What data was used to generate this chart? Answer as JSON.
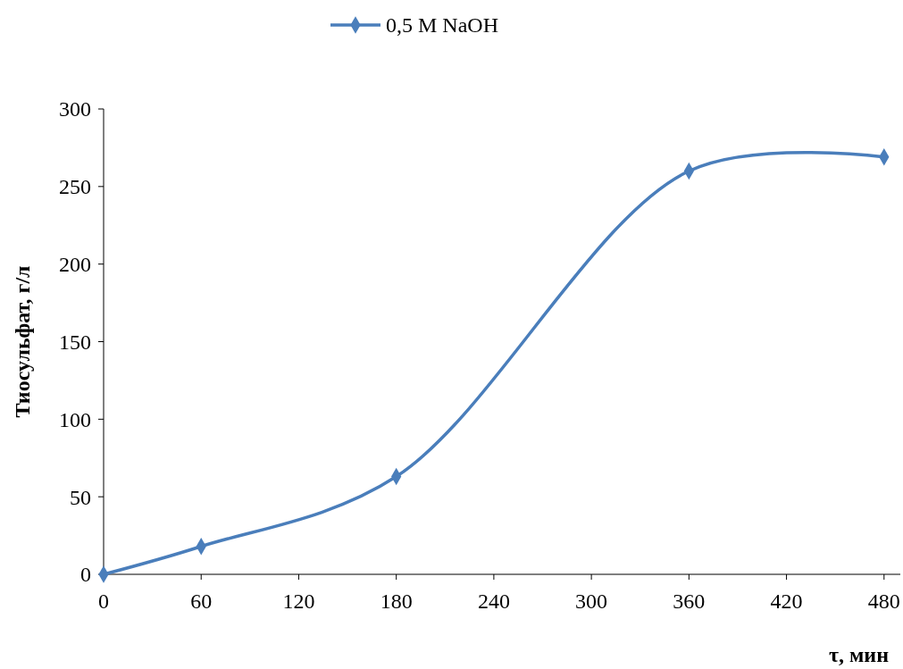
{
  "chart_data": {
    "type": "line",
    "xlabel": "τ, мин",
    "ylabel": "Тиосульфат, г/л",
    "x": [
      0,
      60,
      180,
      360,
      480
    ],
    "series": [
      {
        "name": "0,5 M NaOH",
        "color": "#4a7ebb",
        "values": [
          0,
          18,
          63,
          260,
          269
        ]
      }
    ],
    "xlim": [
      0,
      490
    ],
    "xticks": [
      0,
      60,
      120,
      180,
      240,
      300,
      360,
      420,
      480
    ],
    "ylim": [
      0,
      300
    ],
    "yticks": [
      0,
      50,
      100,
      150,
      200,
      250,
      300
    ],
    "grid": false,
    "legend": "top",
    "marker": "diamond",
    "line_style": "solid"
  }
}
